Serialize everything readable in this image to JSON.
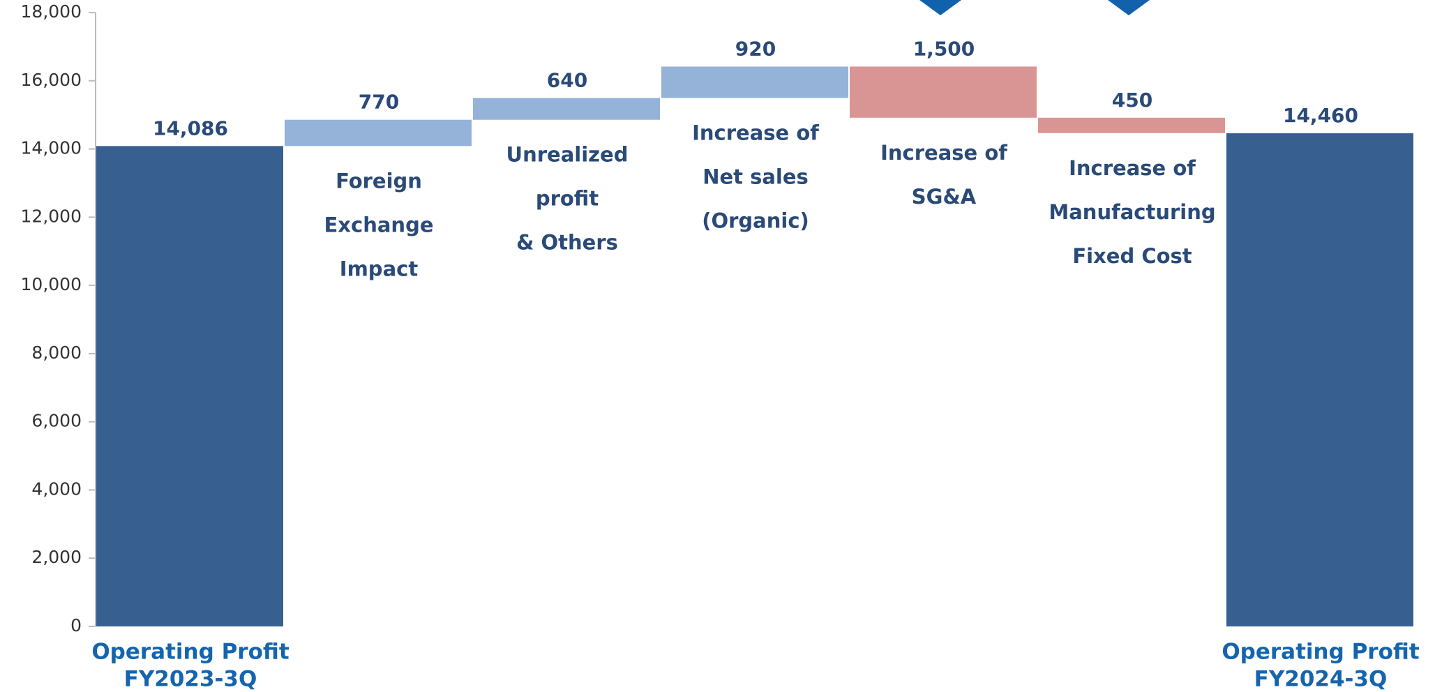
{
  "chart_data": {
    "type": "waterfall",
    "categories": [
      [
        "Operating Profit",
        "FY2023-3Q"
      ],
      [
        "Foreign",
        "Exchange",
        "Impact"
      ],
      [
        "Unrealized",
        "profit",
        "& Others"
      ],
      [
        "Increase of",
        "Net sales",
        "(Organic)"
      ],
      [
        "Increase of",
        "SG&A"
      ],
      [
        "Increase of",
        "Manufacturing",
        "Fixed Cost"
      ],
      [
        "Operating Profit",
        "FY2024-3Q"
      ]
    ],
    "values": [
      14086,
      770,
      640,
      920,
      1500,
      450,
      14460
    ],
    "value_labels": [
      "14,086",
      "770",
      "640",
      "920",
      "1,500",
      "450",
      "14,460"
    ],
    "measure": [
      "total",
      "increase",
      "increase",
      "increase",
      "decrease",
      "decrease",
      "total"
    ],
    "colors": {
      "total": "#375f8f",
      "increase": "#95b3d8",
      "decrease": "#d99594"
    },
    "ylim": [
      0,
      18000
    ],
    "yticks": [
      0,
      {
        "value": 2000,
        "label": "2,000"
      },
      {
        "value": 4000,
        "label": "4,000"
      },
      {
        "value": 6000,
        "label": "6,000"
      },
      {
        "value": 8000,
        "label": "8,000"
      },
      {
        "value": 10000,
        "label": "10,000"
      },
      {
        "value": 12000,
        "label": "12,000"
      },
      {
        "value": 14000,
        "label": "14,000"
      },
      {
        "value": 16000,
        "label": "16,000"
      },
      {
        "value": 18000,
        "label": "18,000"
      }
    ]
  }
}
